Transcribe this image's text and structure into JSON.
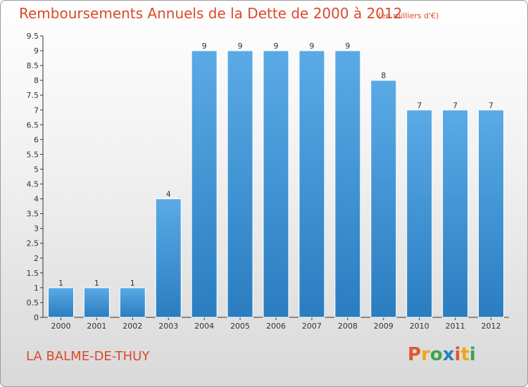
{
  "header": {
    "title": "Remboursements Annuels de la Dette de 2000 à 2012",
    "unit": "(en milliers d'€)"
  },
  "footer": {
    "commune": "LA BALME-DE-THUY",
    "logo": "Proxiti"
  },
  "colors": {
    "bar_top": "#5aaae6",
    "bar_bottom": "#2a7dc0",
    "text_accent": "#d94a2b"
  },
  "chart_data": {
    "type": "bar",
    "categories": [
      "2000",
      "2001",
      "2002",
      "2003",
      "2004",
      "2005",
      "2006",
      "2007",
      "2008",
      "2009",
      "2010",
      "2011",
      "2012"
    ],
    "values": [
      1,
      1,
      1,
      4,
      9,
      9,
      9,
      9,
      9,
      8,
      7,
      7,
      7
    ],
    "ylim": [
      0,
      9.5
    ],
    "yticks": [
      "0",
      "0.5",
      "1",
      "1.5",
      "2",
      "2.5",
      "3",
      "3.5",
      "4",
      "4.5",
      "5",
      "5.5",
      "6",
      "6.5",
      "7",
      "7.5",
      "8",
      "8.5",
      "9",
      "9.5"
    ],
    "grid": false,
    "legend": "none"
  }
}
